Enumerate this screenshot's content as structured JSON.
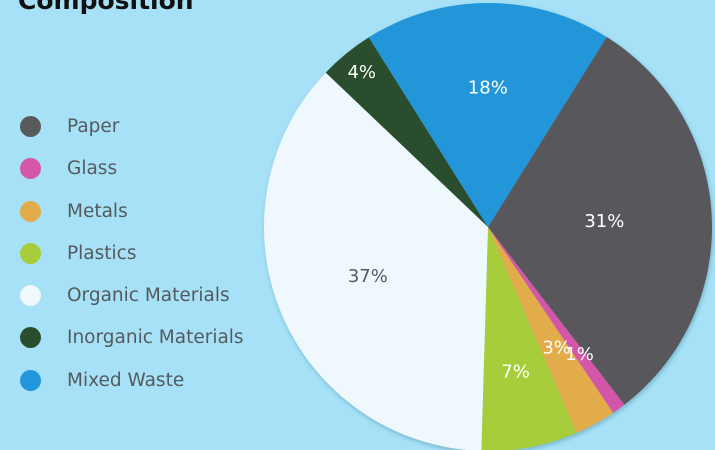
{
  "title": "Composition",
  "chart_data": {
    "type": "pie",
    "title": "Composition",
    "legend_position": "left",
    "categories": [
      "Paper",
      "Glass",
      "Metals",
      "Plastics",
      "Organic Materials",
      "Inorganic Materials",
      "Mixed Waste"
    ],
    "values": [
      31,
      1,
      3,
      7,
      37,
      4,
      18
    ],
    "labels": [
      "31%",
      "1%",
      "3%",
      "7%",
      "37%",
      "4%",
      "18%"
    ],
    "colors": [
      "#58595b",
      "#d457a8",
      "#e2ac4b",
      "#a7cd3b",
      "#eff8fc",
      "#2a4d2d",
      "#2196d8"
    ],
    "label_colors": [
      "#ffffff",
      "#ffffff",
      "#ffffff",
      "#ffffff",
      "#555a5e",
      "#ffffff",
      "#ffffff"
    ]
  },
  "legend": {
    "items": [
      {
        "label": "Paper",
        "color": "#58595b"
      },
      {
        "label": "Glass",
        "color": "#d457a8"
      },
      {
        "label": "Metals",
        "color": "#e2ac4b"
      },
      {
        "label": "Plastics",
        "color": "#a7cd3b"
      },
      {
        "label": "Organic Materials",
        "color": "#eff8fc"
      },
      {
        "label": "Inorganic Materials",
        "color": "#2a4d2d"
      },
      {
        "label": "Mixed Waste",
        "color": "#2196d8"
      }
    ]
  }
}
